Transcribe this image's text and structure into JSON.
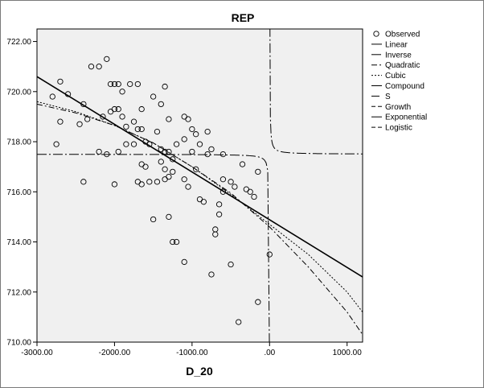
{
  "chart_data": {
    "type": "scatter",
    "title": "REP",
    "xlabel": "D_20",
    "ylabel": "",
    "xlim": [
      -3000,
      1200
    ],
    "ylim": [
      710,
      722.5
    ],
    "x_ticks": [
      -3000,
      -2000,
      -1000,
      0,
      1000
    ],
    "x_tick_labels": [
      "-3000.00",
      "-2000.00",
      "-1000.00",
      ".00",
      "1000.00"
    ],
    "y_ticks": [
      710,
      712,
      714,
      716,
      718,
      720,
      722
    ],
    "y_tick_labels": [
      "710.00",
      "712.00",
      "714.00",
      "716.00",
      "718.00",
      "720.00",
      "722.00"
    ],
    "grid": false,
    "legend_position": "right",
    "observed": {
      "name": "Observed",
      "points": [
        [
          -2800,
          719.8
        ],
        [
          -2700,
          720.4
        ],
        [
          -2600,
          719.9
        ],
        [
          -2400,
          719.5
        ],
        [
          -2300,
          721.0
        ],
        [
          -2200,
          721.0
        ],
        [
          -2100,
          721.3
        ],
        [
          -2050,
          720.3
        ],
        [
          -2000,
          720.3
        ],
        [
          -1950,
          720.3
        ],
        [
          -1900,
          720.0
        ],
        [
          -1800,
          720.3
        ],
        [
          -1700,
          720.3
        ],
        [
          -1350,
          720.2
        ],
        [
          -2700,
          718.8
        ],
        [
          -2450,
          718.7
        ],
        [
          -2350,
          718.9
        ],
        [
          -2150,
          719.0
        ],
        [
          -2050,
          719.2
        ],
        [
          -2000,
          719.3
        ],
        [
          -1950,
          719.3
        ],
        [
          -1900,
          719.0
        ],
        [
          -1850,
          718.6
        ],
        [
          -1750,
          718.8
        ],
        [
          -1650,
          719.3
        ],
        [
          -1500,
          719.8
        ],
        [
          -1400,
          719.5
        ],
        [
          -1300,
          718.9
        ],
        [
          -1100,
          719.0
        ],
        [
          -1050,
          718.9
        ],
        [
          -1000,
          718.5
        ],
        [
          -950,
          718.3
        ],
        [
          -800,
          718.4
        ],
        [
          -2750,
          717.9
        ],
        [
          -2200,
          717.6
        ],
        [
          -2100,
          717.5
        ],
        [
          -1950,
          717.6
        ],
        [
          -1850,
          717.9
        ],
        [
          -1750,
          717.9
        ],
        [
          -1700,
          718.5
        ],
        [
          -1650,
          718.5
        ],
        [
          -1600,
          718.0
        ],
        [
          -1550,
          717.9
        ],
        [
          -1450,
          718.4
        ],
        [
          -1400,
          717.7
        ],
        [
          -1350,
          717.6
        ],
        [
          -1300,
          717.6
        ],
        [
          -1250,
          717.3
        ],
        [
          -1200,
          717.9
        ],
        [
          -1100,
          718.1
        ],
        [
          -1000,
          717.6
        ],
        [
          -900,
          717.9
        ],
        [
          -800,
          717.5
        ],
        [
          -750,
          717.7
        ],
        [
          -600,
          717.5
        ],
        [
          -1650,
          717.1
        ],
        [
          -1600,
          717.0
        ],
        [
          -1400,
          717.2
        ],
        [
          -1350,
          716.9
        ],
        [
          -1300,
          716.6
        ],
        [
          -1250,
          716.8
        ],
        [
          -1100,
          716.5
        ],
        [
          -1050,
          716.2
        ],
        [
          -950,
          716.9
        ],
        [
          -600,
          716.5
        ],
        [
          -500,
          716.4
        ],
        [
          -450,
          716.2
        ],
        [
          -350,
          717.1
        ],
        [
          -150,
          716.8
        ],
        [
          -2400,
          716.4
        ],
        [
          -2000,
          716.3
        ],
        [
          -1700,
          716.4
        ],
        [
          -1650,
          716.3
        ],
        [
          -1550,
          716.4
        ],
        [
          -1450,
          716.4
        ],
        [
          -1350,
          716.5
        ],
        [
          -900,
          715.7
        ],
        [
          -850,
          715.6
        ],
        [
          -650,
          715.5
        ],
        [
          -600,
          716.0
        ],
        [
          -300,
          716.1
        ],
        [
          -250,
          716.0
        ],
        [
          -200,
          715.8
        ],
        [
          -650,
          715.1
        ],
        [
          -1500,
          714.9
        ],
        [
          -1300,
          715.0
        ],
        [
          -700,
          714.5
        ],
        [
          -700,
          714.3
        ],
        [
          -1250,
          714.0
        ],
        [
          -1200,
          714.0
        ],
        [
          -500,
          713.1
        ],
        [
          -1100,
          713.2
        ],
        [
          -750,
          712.7
        ],
        [
          -150,
          711.6
        ],
        [
          -400,
          710.8
        ],
        [
          0,
          713.5
        ]
      ]
    },
    "fits": [
      {
        "name": "Linear",
        "style": "solid"
      },
      {
        "name": "Inverse",
        "style": "dashdot-long"
      },
      {
        "name": "Quadratic",
        "style": "dashdot"
      },
      {
        "name": "Cubic",
        "style": "dotted"
      },
      {
        "name": "Compound",
        "style": "solid"
      },
      {
        "name": "S",
        "style": "dash-long"
      },
      {
        "name": "Growth",
        "style": "dashed"
      },
      {
        "name": "Exponential",
        "style": "solid"
      },
      {
        "name": "Logistic",
        "style": "dashed"
      }
    ],
    "linear_fit": {
      "x": [
        -3000,
        1200
      ],
      "y": [
        720.6,
        712.6
      ]
    },
    "quadratic_fit": {
      "x": [
        -3000,
        -2500,
        -2000,
        -1500,
        -1000,
        -500,
        0,
        500,
        1000,
        1200
      ],
      "y": [
        719.5,
        719.15,
        718.65,
        717.95,
        717.0,
        715.95,
        714.6,
        713.0,
        711.2,
        710.3
      ]
    },
    "cubic_fit": {
      "x": [
        -3000,
        -2500,
        -2000,
        -1500,
        -1000,
        -500,
        0,
        500,
        1000,
        1200
      ],
      "y": [
        719.6,
        719.2,
        718.65,
        717.95,
        717.0,
        715.9,
        714.7,
        713.5,
        712.0,
        711.2
      ]
    },
    "inverse_fit": {
      "constant": 717.5,
      "coefficient": 15.3
    }
  }
}
